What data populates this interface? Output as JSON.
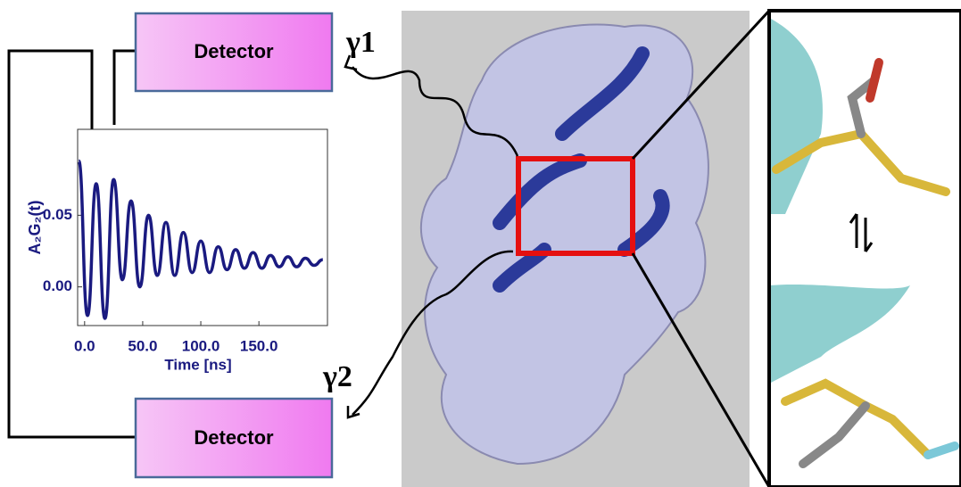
{
  "detectors": [
    {
      "label": "Detector"
    },
    {
      "label": "Detector"
    }
  ],
  "photons": [
    {
      "label": "γ1"
    },
    {
      "label": "γ2"
    }
  ],
  "plot": {
    "type": "line",
    "xlabel": "Time [ns]",
    "ylabel": "A₂G₂(t)",
    "color": "#1a1a80",
    "xlim": [
      -6,
      209
    ],
    "ylim": [
      -0.027,
      0.11
    ],
    "xticks": [
      {
        "value": 0,
        "label": "0.0"
      },
      {
        "value": 50,
        "label": "50.0"
      },
      {
        "value": 100,
        "label": "100.0"
      },
      {
        "value": 150,
        "label": "150.0"
      }
    ],
    "yticks": [
      {
        "value": 0,
        "label": "0.00"
      },
      {
        "value": 0.05,
        "label": "0.05"
      }
    ],
    "x": [
      -5,
      2.5,
      10,
      17.5,
      25,
      32.5,
      40,
      47.5,
      55,
      62.5,
      70,
      77.5,
      85,
      92.5,
      100,
      107.5,
      115,
      122.5,
      130,
      137.5,
      145,
      152.5,
      160,
      167.5,
      175,
      182.5,
      190,
      197.5,
      205
    ],
    "values": [
      0.088,
      -0.02,
      0.072,
      -0.022,
      0.075,
      0.005,
      0.06,
      0,
      0.05,
      0.008,
      0.045,
      0.008,
      0.038,
      0.01,
      0.032,
      0.01,
      0.028,
      0.012,
      0.026,
      0.013,
      0.024,
      0.013,
      0.022,
      0.014,
      0.021,
      0.014,
      0.02,
      0.015,
      0.019
    ]
  }
}
